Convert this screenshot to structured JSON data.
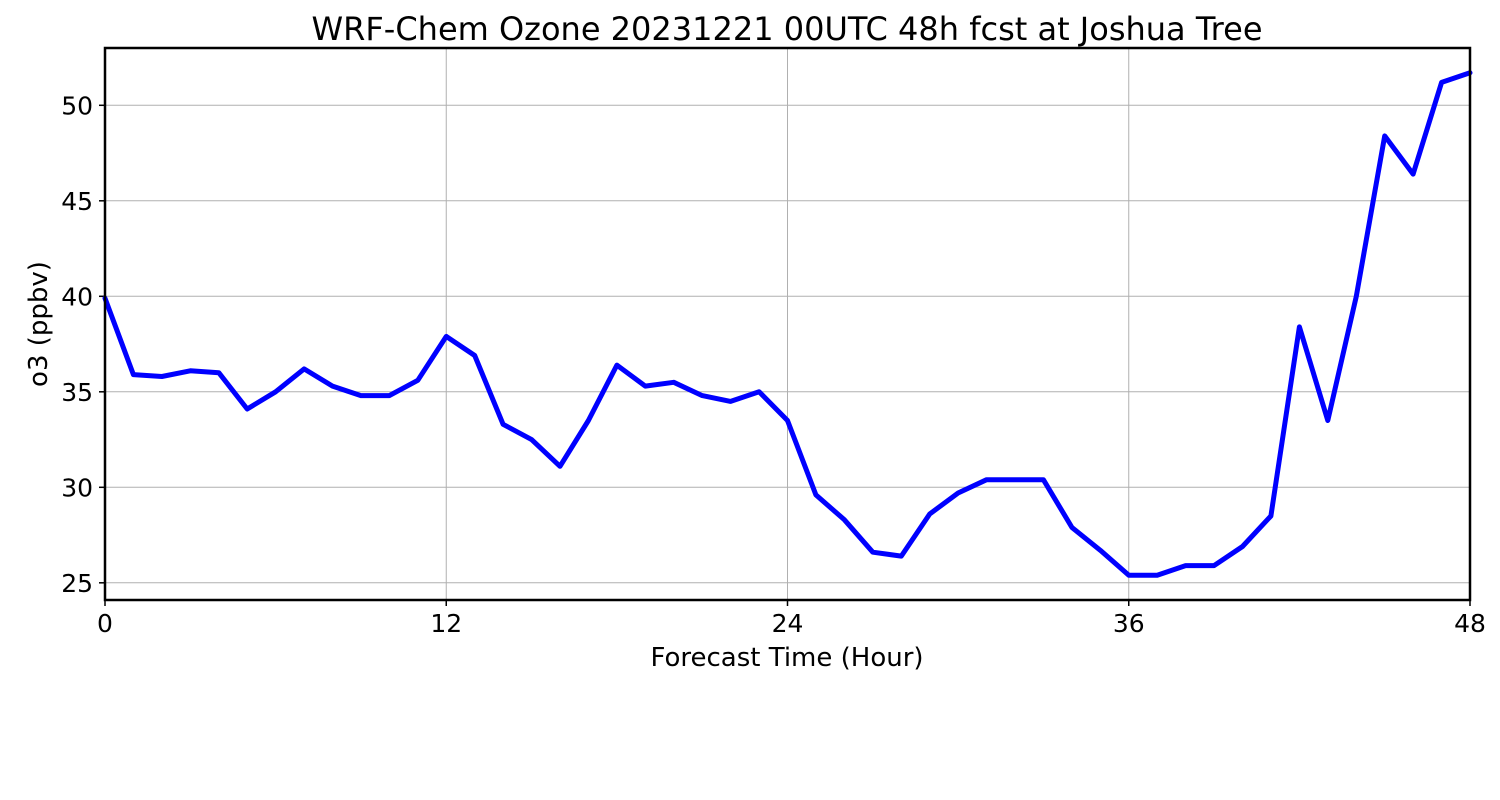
{
  "chart_data": {
    "type": "line",
    "title": "WRF-Chem Ozone  20231221 00UTC 48h fcst at Joshua Tree",
    "xlabel": "Forecast Time (Hour)",
    "ylabel": "o3  (ppbv)",
    "xlim": [
      0,
      48
    ],
    "ylim": [
      24.1,
      53.0
    ],
    "xticks": [
      0,
      12,
      24,
      36,
      48
    ],
    "yticks": [
      25,
      30,
      35,
      40,
      45,
      50
    ],
    "grid": true,
    "line_color": "#0000ff",
    "series": [
      {
        "x": [
          0,
          1,
          2,
          3,
          4,
          5,
          6,
          7,
          8,
          9,
          10,
          11,
          12,
          13,
          14,
          15,
          16,
          17,
          18,
          19,
          20,
          21,
          22,
          23,
          24,
          25,
          26,
          27,
          28,
          29,
          30,
          31,
          32,
          33,
          34,
          35,
          36,
          37,
          38,
          39,
          40,
          41,
          42,
          43,
          44,
          45,
          46,
          47,
          48
        ],
        "values": [
          39.9,
          35.9,
          35.8,
          36.1,
          36.0,
          34.1,
          35.0,
          36.2,
          35.3,
          34.8,
          34.8,
          35.6,
          37.9,
          36.9,
          33.3,
          32.5,
          31.1,
          33.5,
          36.4,
          35.3,
          35.5,
          34.8,
          34.5,
          35.0,
          33.5,
          29.6,
          28.3,
          26.6,
          26.4,
          28.6,
          29.7,
          30.4,
          30.4,
          30.4,
          27.9,
          26.7,
          25.4,
          25.4,
          25.9,
          25.9,
          26.9,
          28.5,
          38.4,
          33.5,
          40.0,
          48.4,
          46.4,
          51.2,
          51.7
        ]
      }
    ]
  }
}
